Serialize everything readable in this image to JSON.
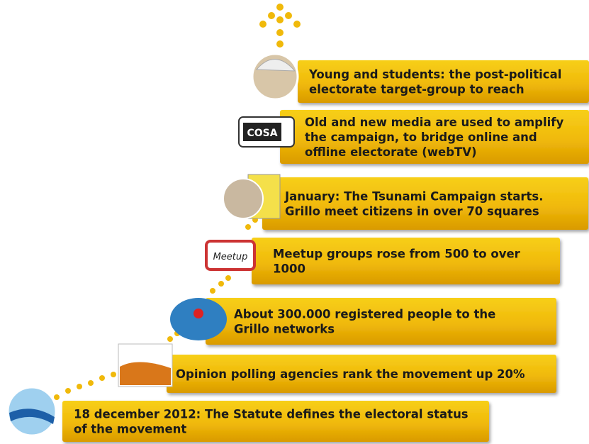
{
  "steps": [
    {
      "lines": [
        "18 december 2012: The Statute defines the electoral status",
        "of the movement"
      ]
    },
    {
      "lines": [
        "Opinion polling  agencies  rank the movement up 20%"
      ]
    },
    {
      "lines": [
        "About 300.000 registered people to the",
        "Grillo networks"
      ]
    },
    {
      "lines": [
        "Meetup groups  rose from 500 to over",
        "1000"
      ],
      "icon_label": "Meetup"
    },
    {
      "lines": [
        "January: The Tsunami Campaign starts.",
        "Grillo meet citizens in over 70 squares"
      ]
    },
    {
      "lines": [
        "Old and new media are used to amplify",
        "the campaign, to bridge online and",
        "offline electorate (webTV)"
      ],
      "icon_label": "COSA"
    },
    {
      "lines": [
        "Young and students: the post-political",
        "electorate target-group to reach"
      ]
    }
  ]
}
